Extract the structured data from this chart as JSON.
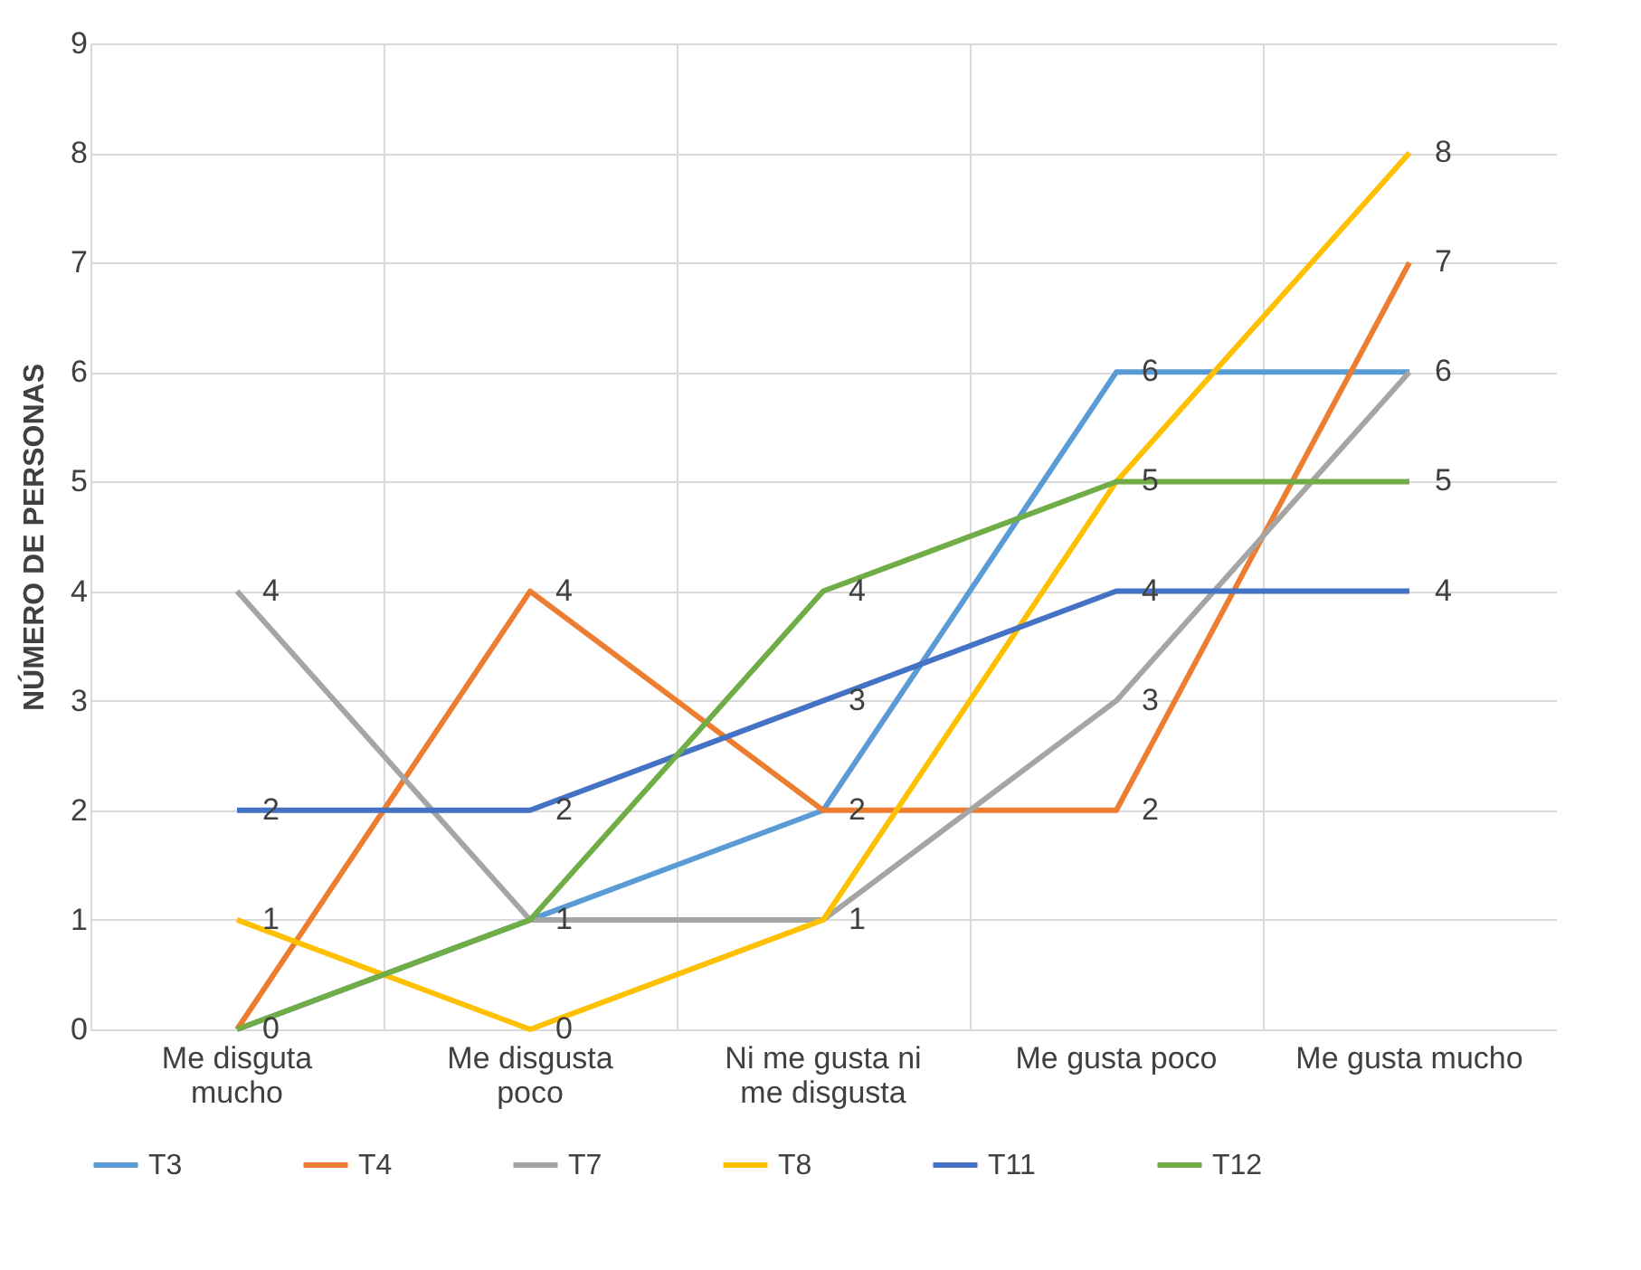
{
  "chart_data": {
    "type": "line",
    "ylabel": "NÚMERO DE PERSONAS",
    "categories": [
      "Me disguta mucho",
      "Me disgusta poco",
      "Ni me gusta ni me disgusta",
      "Me gusta poco",
      "Me gusta mucho"
    ],
    "series": [
      {
        "name": "T3",
        "color": "#5b9bd5",
        "values": [
          0,
          1,
          2,
          6,
          6
        ],
        "value_labels": [
          "0",
          "1",
          "2",
          "6",
          "6"
        ]
      },
      {
        "name": "T4",
        "color": "#ed7d31",
        "values": [
          0,
          4,
          2,
          2,
          7
        ],
        "value_labels": [
          null,
          "4",
          null,
          "2",
          "7"
        ]
      },
      {
        "name": "T7",
        "color": "#a5a5a5",
        "values": [
          4,
          1,
          1,
          3,
          6
        ],
        "value_labels": [
          "4",
          null,
          "1",
          "3",
          null
        ]
      },
      {
        "name": "T8",
        "color": "#ffc000",
        "values": [
          1,
          0,
          1,
          5,
          8
        ],
        "value_labels": [
          "1",
          "0",
          null,
          "5",
          "8"
        ]
      },
      {
        "name": "T11",
        "color": "#4472c4",
        "values": [
          2,
          2,
          3,
          4,
          4
        ],
        "value_labels": [
          "2",
          "2",
          "3",
          "4",
          "4"
        ]
      },
      {
        "name": "T12",
        "color": "#70ad47",
        "values": [
          0,
          1,
          4,
          5,
          5
        ],
        "value_labels": [
          null,
          null,
          "4",
          null,
          "5"
        ]
      }
    ],
    "ylim": [
      0,
      9
    ],
    "yticks": [
      0,
      1,
      2,
      3,
      4,
      5,
      6,
      7,
      8,
      9
    ],
    "grid": true,
    "legend": "bottom"
  }
}
